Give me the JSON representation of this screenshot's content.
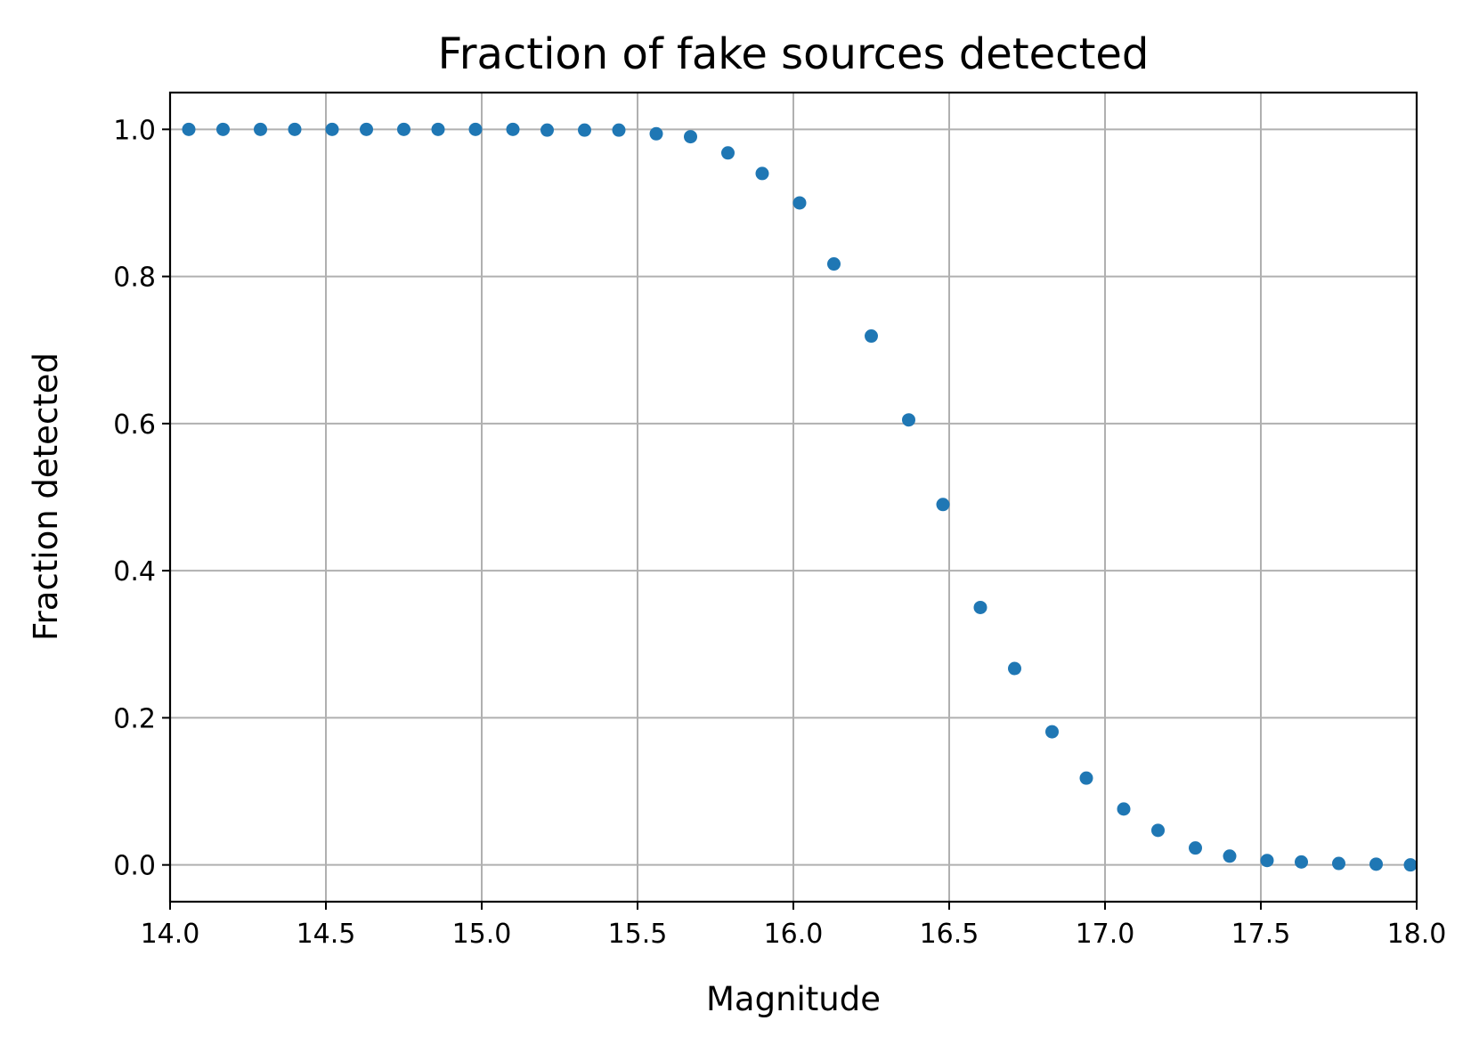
{
  "chart_data": {
    "type": "scatter",
    "title": "Fraction of fake sources detected",
    "xlabel": "Magnitude",
    "ylabel": "Fraction detected",
    "xlim": [
      14.0,
      18.0
    ],
    "ylim": [
      -0.05,
      1.05
    ],
    "xticks": [
      14.0,
      14.5,
      15.0,
      15.5,
      16.0,
      16.5,
      17.0,
      17.5,
      18.0
    ],
    "xtick_labels": [
      "14.0",
      "14.5",
      "15.0",
      "15.5",
      "16.0",
      "16.5",
      "17.0",
      "17.5",
      "18.0"
    ],
    "yticks": [
      0.0,
      0.2,
      0.4,
      0.6,
      0.8,
      1.0
    ],
    "ytick_labels": [
      "0.0",
      "0.2",
      "0.4",
      "0.6",
      "0.8",
      "1.0"
    ],
    "grid": true,
    "legend": false,
    "marker_color": "#1f77b4",
    "series": [
      {
        "x": [
          14.06,
          14.17,
          14.29,
          14.4,
          14.52,
          14.63,
          14.75,
          14.86,
          14.98,
          15.1,
          15.21,
          15.33,
          15.44,
          15.56,
          15.67,
          15.79,
          15.9,
          16.02,
          16.13,
          16.25,
          16.37,
          16.48,
          16.6,
          16.71,
          16.83,
          16.94,
          17.06,
          17.17,
          17.29,
          17.4,
          17.52,
          17.63,
          17.75,
          17.87,
          17.98
        ],
        "y": [
          1.0,
          1.0,
          1.0,
          1.0,
          1.0,
          1.0,
          1.0,
          1.0,
          1.0,
          1.0,
          0.999,
          0.999,
          0.999,
          0.994,
          0.99,
          0.968,
          0.94,
          0.9,
          0.817,
          0.719,
          0.605,
          0.49,
          0.35,
          0.267,
          0.181,
          0.118,
          0.076,
          0.047,
          0.023,
          0.012,
          0.006,
          0.004,
          0.002,
          0.001,
          0.0
        ]
      }
    ]
  }
}
